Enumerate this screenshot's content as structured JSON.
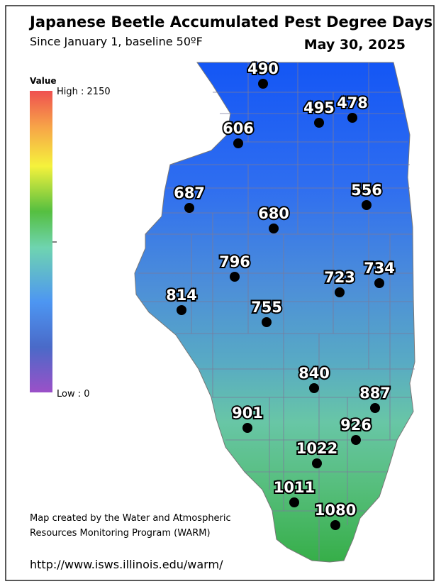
{
  "header": {
    "title": "Japanese Beetle Accumulated Pest Degree Days",
    "subtitle": "Since January 1, baseline 50ºF",
    "date": "May 30, 2025"
  },
  "legend": {
    "title": "Value",
    "high": "High : 2150",
    "low": "Low : 0"
  },
  "stations": [
    "490",
    "495",
    "478",
    "606",
    "687",
    "556",
    "680",
    "796",
    "723",
    "734",
    "814",
    "755",
    "840",
    "887",
    "901",
    "926",
    "1022",
    "1011",
    "1080"
  ],
  "footer": {
    "credit_line1": "Map created by the Water and Atmospheric",
    "credit_line2": "Resources Monitoring Program (WARM)",
    "url": "http://www.isws.illinois.edu/warm/"
  }
}
